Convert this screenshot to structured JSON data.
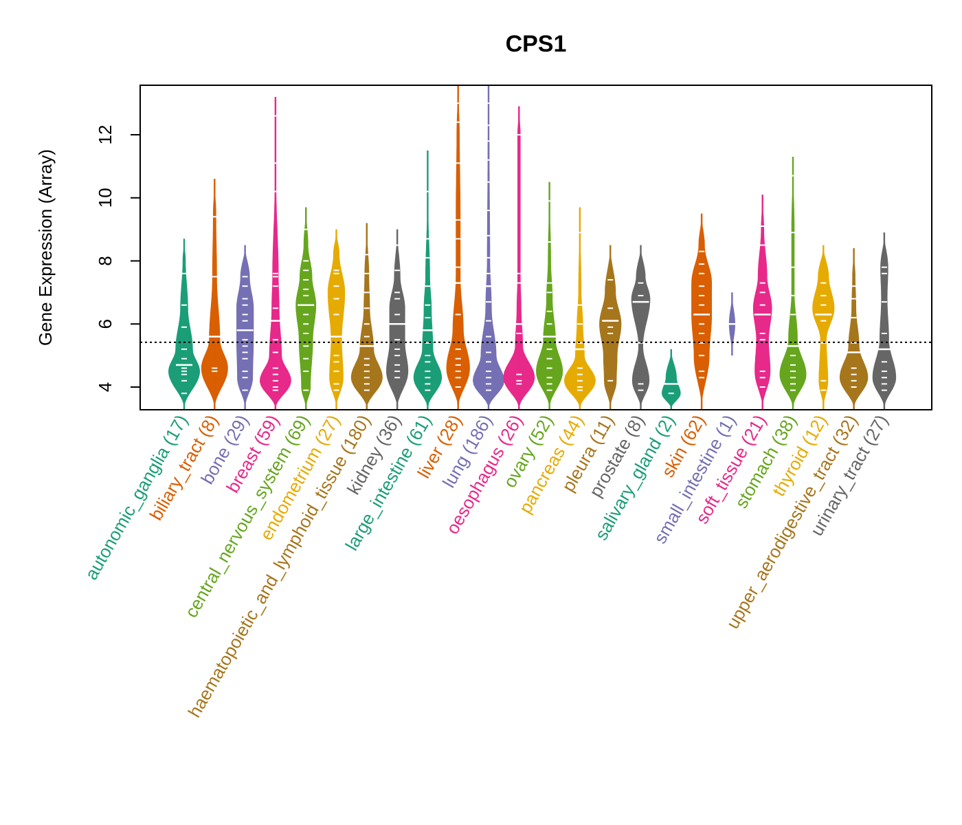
{
  "chart_data": {
    "type": "beanplot",
    "title": "CPS1",
    "xlabel": "",
    "ylabel": "Gene Expression (Array)",
    "ylim": [
      3.3,
      13.6
    ],
    "yticks": [
      4,
      6,
      8,
      10,
      12
    ],
    "reference_line": 5.42,
    "grid": false,
    "legend": "none",
    "categories": [
      {
        "name": "autonomic_ganglia",
        "n": 17,
        "label": "autonomic_ganglia (17)",
        "color": "#1B9E77",
        "min": 3.3,
        "max": 8.7,
        "density": [
          [
            4.5,
            1.0
          ],
          [
            5.2,
            0.55
          ],
          [
            6.5,
            0.25
          ],
          [
            8.0,
            0.1
          ]
        ],
        "points": [
          3.8,
          4.2,
          4.4,
          4.5,
          4.6,
          4.7,
          4.9,
          5.2,
          5.9,
          6.6,
          7.6
        ]
      },
      {
        "name": "biliary_tract",
        "n": 8,
        "label": "biliary_tract (8)",
        "color": "#D95F02",
        "min": 3.3,
        "max": 10.6,
        "density": [
          [
            4.6,
            0.85
          ],
          [
            5.5,
            0.35
          ],
          [
            7.5,
            0.15
          ],
          [
            9.5,
            0.1
          ]
        ],
        "points": [
          4.5,
          4.6,
          5.6,
          7.5,
          9.4
        ]
      },
      {
        "name": "bone",
        "n": 29,
        "label": "bone (29)",
        "color": "#7570B3",
        "min": 3.3,
        "max": 8.5,
        "density": [
          [
            4.3,
            0.5
          ],
          [
            5.5,
            0.55
          ],
          [
            6.5,
            0.55
          ],
          [
            7.5,
            0.3
          ]
        ],
        "points": [
          3.9,
          4.3,
          4.5,
          4.9,
          5.1,
          5.3,
          5.5,
          5.8,
          6.1,
          6.3,
          6.6,
          6.8,
          7.2,
          7.5
        ]
      },
      {
        "name": "breast",
        "n": 59,
        "label": "breast (59)",
        "color": "#E7298A",
        "min": 3.3,
        "max": 13.2,
        "density": [
          [
            4.2,
            1.0
          ],
          [
            5.0,
            0.4
          ],
          [
            6.5,
            0.25
          ],
          [
            7.5,
            0.2
          ],
          [
            10.5,
            0.05
          ]
        ],
        "points": [
          3.9,
          4.0,
          4.2,
          4.4,
          4.6,
          5.1,
          5.5,
          6.1,
          6.5,
          7.2,
          7.5,
          7.6,
          10.2,
          11.1,
          12.6
        ]
      },
      {
        "name": "central_nervous_system",
        "n": 69,
        "label": "central_nervous_system (69)",
        "color": "#66A61E",
        "min": 3.3,
        "max": 9.7,
        "density": [
          [
            4.0,
            0.3
          ],
          [
            5.5,
            0.45
          ],
          [
            6.6,
            0.65
          ],
          [
            7.5,
            0.4
          ],
          [
            8.5,
            0.15
          ]
        ],
        "points": [
          3.9,
          4.5,
          4.9,
          5.3,
          5.7,
          6.0,
          6.3,
          6.6,
          6.9,
          7.1,
          7.4,
          7.7,
          8.0,
          9.0
        ]
      },
      {
        "name": "endometrium",
        "n": 27,
        "label": "endometrium (27)",
        "color": "#E6AB02",
        "min": 3.3,
        "max": 9.0,
        "density": [
          [
            4.3,
            0.45
          ],
          [
            5.5,
            0.35
          ],
          [
            7.0,
            0.55
          ],
          [
            8.2,
            0.2
          ]
        ],
        "points": [
          3.9,
          4.1,
          4.5,
          4.8,
          5.0,
          5.6,
          6.3,
          6.8,
          7.2,
          7.6,
          7.7
        ]
      },
      {
        "name": "haematopoietic_and_lymphoid_tissue",
        "n": 180,
        "label": "haematopoietic_and_lymphoid_tissue (180)",
        "color": "#A6761D",
        "min": 3.3,
        "max": 9.2,
        "density": [
          [
            4.3,
            1.0
          ],
          [
            5.2,
            0.45
          ],
          [
            6.5,
            0.2
          ],
          [
            7.5,
            0.15
          ]
        ],
        "points": [
          3.9,
          4.1,
          4.3,
          4.5,
          4.7,
          4.9,
          5.3,
          5.6,
          6.0,
          6.5,
          7.0,
          7.6,
          8.2
        ]
      },
      {
        "name": "kidney",
        "n": 36,
        "label": "kidney (36)",
        "color": "#666666",
        "min": 3.3,
        "max": 9.0,
        "density": [
          [
            4.5,
            0.7
          ],
          [
            5.4,
            0.5
          ],
          [
            6.5,
            0.5
          ],
          [
            7.5,
            0.2
          ]
        ],
        "points": [
          4.3,
          4.5,
          4.7,
          5.0,
          5.2,
          5.5,
          6.0,
          6.3,
          6.8,
          7.0,
          7.7,
          8.5
        ]
      },
      {
        "name": "large_intestine",
        "n": 61,
        "label": "large_intestine (61)",
        "color": "#1B9E77",
        "min": 3.3,
        "max": 11.5,
        "density": [
          [
            4.3,
            0.9
          ],
          [
            5.2,
            0.35
          ],
          [
            6.5,
            0.25
          ],
          [
            7.5,
            0.15
          ],
          [
            9.5,
            0.05
          ]
        ],
        "points": [
          3.9,
          4.1,
          4.3,
          4.5,
          4.8,
          5.0,
          5.4,
          5.8,
          6.2,
          6.6,
          7.2,
          8.1,
          8.7,
          10.2
        ]
      },
      {
        "name": "liver",
        "n": 28,
        "label": "liver (28)",
        "color": "#D95F02",
        "min": 3.3,
        "max": 13.6,
        "density": [
          [
            4.6,
            0.75
          ],
          [
            5.8,
            0.35
          ],
          [
            7.5,
            0.15
          ],
          [
            9.5,
            0.15
          ],
          [
            12.0,
            0.1
          ]
        ],
        "points": [
          4.0,
          4.3,
          4.5,
          4.7,
          4.9,
          5.2,
          6.3,
          7.3,
          7.8,
          8.7,
          9.3,
          11.1,
          12.4,
          13.0
        ]
      },
      {
        "name": "lung",
        "n": 186,
        "label": "lung (186)",
        "color": "#7570B3",
        "min": 3.3,
        "max": 13.6,
        "density": [
          [
            4.2,
            1.0
          ],
          [
            5.0,
            0.5
          ],
          [
            6.5,
            0.2
          ],
          [
            8.0,
            0.1
          ],
          [
            11.5,
            0.06
          ]
        ],
        "points": [
          3.9,
          4.1,
          4.3,
          4.5,
          4.8,
          5.1,
          5.6,
          6.1,
          6.7,
          7.2,
          7.6,
          8.1,
          8.8,
          9.6,
          10.5,
          11.2,
          11.8,
          12.3,
          13.0
        ]
      },
      {
        "name": "oesophagus",
        "n": 26,
        "label": "oesophagus (26)",
        "color": "#E7298A",
        "min": 3.3,
        "max": 12.9,
        "density": [
          [
            4.3,
            1.0
          ],
          [
            5.3,
            0.25
          ],
          [
            6.5,
            0.15
          ],
          [
            7.5,
            0.1
          ],
          [
            12.0,
            0.1
          ]
        ],
        "points": [
          4.1,
          4.2,
          4.4,
          5.7,
          6.0,
          7.3,
          7.6,
          12.0
        ]
      },
      {
        "name": "ovary",
        "n": 52,
        "label": "ovary (52)",
        "color": "#66A61E",
        "min": 3.3,
        "max": 10.5,
        "density": [
          [
            4.5,
            0.85
          ],
          [
            5.5,
            0.4
          ],
          [
            6.8,
            0.2
          ],
          [
            8.0,
            0.1
          ]
        ],
        "points": [
          3.9,
          4.1,
          4.3,
          4.6,
          4.9,
          5.2,
          5.6,
          6.0,
          6.4,
          7.0,
          7.3,
          8.6,
          9.9
        ]
      },
      {
        "name": "pancreas",
        "n": 44,
        "label": "pancreas (44)",
        "color": "#E6AB02",
        "min": 3.3,
        "max": 9.7,
        "density": [
          [
            4.2,
            1.0
          ],
          [
            5.0,
            0.3
          ],
          [
            6.0,
            0.2
          ],
          [
            7.0,
            0.1
          ]
        ],
        "points": [
          3.9,
          4.0,
          4.2,
          4.4,
          4.6,
          5.2,
          5.4,
          6.0,
          6.6,
          8.9
        ]
      },
      {
        "name": "pleura",
        "n": 11,
        "label": "pleura (11)",
        "color": "#A6761D",
        "min": 3.3,
        "max": 8.5,
        "density": [
          [
            4.2,
            0.4
          ],
          [
            5.0,
            0.45
          ],
          [
            6.0,
            0.7
          ],
          [
            7.0,
            0.35
          ]
        ],
        "points": [
          4.2,
          5.7,
          5.9,
          6.1,
          6.5,
          7.4
        ]
      },
      {
        "name": "prostate",
        "n": 8,
        "label": "prostate (8)",
        "color": "#666666",
        "min": 3.3,
        "max": 8.5,
        "density": [
          [
            4.2,
            0.55
          ],
          [
            5.3,
            0.15
          ],
          [
            6.8,
            0.6
          ],
          [
            7.5,
            0.3
          ]
        ],
        "points": [
          3.9,
          4.1,
          5.4,
          6.7,
          6.9,
          7.3
        ]
      },
      {
        "name": "salivary_gland",
        "n": 2,
        "label": "salivary_gland (2)",
        "color": "#1B9E77",
        "min": 3.3,
        "max": 5.2,
        "density": [
          [
            3.8,
            0.6
          ],
          [
            4.3,
            0.35
          ]
        ],
        "points": [
          3.8,
          4.1
        ]
      },
      {
        "name": "skin",
        "n": 62,
        "label": "skin (62)",
        "color": "#D95F02",
        "min": 3.3,
        "max": 9.5,
        "density": [
          [
            5.0,
            0.5
          ],
          [
            6.3,
            0.65
          ],
          [
            7.3,
            0.65
          ],
          [
            8.5,
            0.2
          ]
        ],
        "points": [
          4.3,
          4.5,
          5.0,
          5.4,
          5.7,
          6.0,
          6.3,
          6.6,
          6.9,
          7.2,
          7.6,
          7.9,
          8.3
        ]
      },
      {
        "name": "small_intestine",
        "n": 1,
        "label": "small_intestine (1)",
        "color": "#7570B3",
        "min": 5.0,
        "max": 7.0,
        "density": [
          [
            6.0,
            0.2
          ]
        ],
        "points": [
          6.0
        ]
      },
      {
        "name": "soft_tissue",
        "n": 21,
        "label": "soft_tissue (21)",
        "color": "#E7298A",
        "min": 3.3,
        "max": 10.1,
        "density": [
          [
            4.5,
            0.5
          ],
          [
            5.5,
            0.4
          ],
          [
            6.5,
            0.6
          ],
          [
            7.5,
            0.3
          ],
          [
            9.0,
            0.1
          ]
        ],
        "points": [
          4.0,
          4.3,
          4.5,
          5.5,
          5.7,
          6.3,
          6.6,
          7.0,
          7.3,
          8.5,
          9.1
        ]
      },
      {
        "name": "stomach",
        "n": 38,
        "label": "stomach (38)",
        "color": "#66A61E",
        "min": 3.3,
        "max": 11.3,
        "density": [
          [
            4.4,
            0.85
          ],
          [
            5.5,
            0.3
          ],
          [
            7.0,
            0.1
          ],
          [
            9.0,
            0.1
          ]
        ],
        "points": [
          3.9,
          4.1,
          4.3,
          4.5,
          4.7,
          5.0,
          5.3,
          6.3,
          6.9,
          7.8,
          8.9,
          10.7
        ]
      },
      {
        "name": "thyroid",
        "n": 12,
        "label": "thyroid (12)",
        "color": "#E6AB02",
        "min": 3.3,
        "max": 8.5,
        "density": [
          [
            4.2,
            0.3
          ],
          [
            5.5,
            0.2
          ],
          [
            6.5,
            0.7
          ],
          [
            7.5,
            0.35
          ]
        ],
        "points": [
          3.9,
          4.2,
          5.4,
          6.1,
          6.3,
          6.6,
          6.9,
          7.3
        ]
      },
      {
        "name": "upper_aerodigestive_tract",
        "n": 32,
        "label": "upper_aerodigestive_tract (32)",
        "color": "#A6761D",
        "min": 3.3,
        "max": 8.4,
        "density": [
          [
            4.3,
            0.9
          ],
          [
            5.3,
            0.35
          ],
          [
            6.5,
            0.15
          ],
          [
            7.5,
            0.1
          ]
        ],
        "points": [
          4.0,
          4.2,
          4.4,
          4.6,
          5.1,
          5.4,
          6.2,
          6.8,
          7.2
        ]
      },
      {
        "name": "urinary_tract",
        "n": 27,
        "label": "urinary_tract (27)",
        "color": "#666666",
        "min": 3.3,
        "max": 8.9,
        "density": [
          [
            4.3,
            0.75
          ],
          [
            5.5,
            0.3
          ],
          [
            6.8,
            0.2
          ],
          [
            7.8,
            0.25
          ]
        ],
        "points": [
          3.9,
          4.1,
          4.3,
          4.5,
          4.8,
          5.2,
          5.7,
          6.7,
          7.6,
          7.8
        ]
      }
    ]
  }
}
